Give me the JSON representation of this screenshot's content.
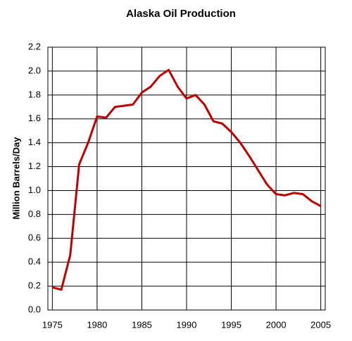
{
  "chart_data": {
    "type": "line",
    "title": "Alaska Oil Production",
    "ylabel": "Million Barrels/Day",
    "x": [
      1975,
      1976,
      1977,
      1978,
      1979,
      1980,
      1981,
      1982,
      1983,
      1984,
      1985,
      1986,
      1987,
      1988,
      1989,
      1990,
      1991,
      1992,
      1993,
      1994,
      1995,
      1996,
      1997,
      1998,
      1999,
      2000,
      2001,
      2002,
      2003,
      2004,
      2005
    ],
    "series": [
      {
        "color": "#c00000",
        "values": [
          0.19,
          0.17,
          0.46,
          1.22,
          1.4,
          1.62,
          1.61,
          1.7,
          1.71,
          1.72,
          1.82,
          1.87,
          1.96,
          2.01,
          1.87,
          1.77,
          1.8,
          1.72,
          1.58,
          1.56,
          1.49,
          1.4,
          1.29,
          1.17,
          1.05,
          0.97,
          0.96,
          0.98,
          0.97,
          0.91,
          0.87
        ]
      }
    ],
    "xlim": [
      1974.5,
      2005.5
    ],
    "xticks": [
      1975,
      1980,
      1985,
      1990,
      1995,
      2000,
      2005
    ],
    "ylim": [
      0,
      2.2
    ],
    "yticks": [
      {
        "value": 0,
        "label": "0.0"
      },
      0.2,
      0.4,
      0.6,
      0.8,
      {
        "value": 1,
        "label": "1.0"
      },
      1.2,
      1.4,
      1.6,
      1.8,
      {
        "value": 2,
        "label": "2.0"
      },
      2.2
    ],
    "grid": true
  }
}
